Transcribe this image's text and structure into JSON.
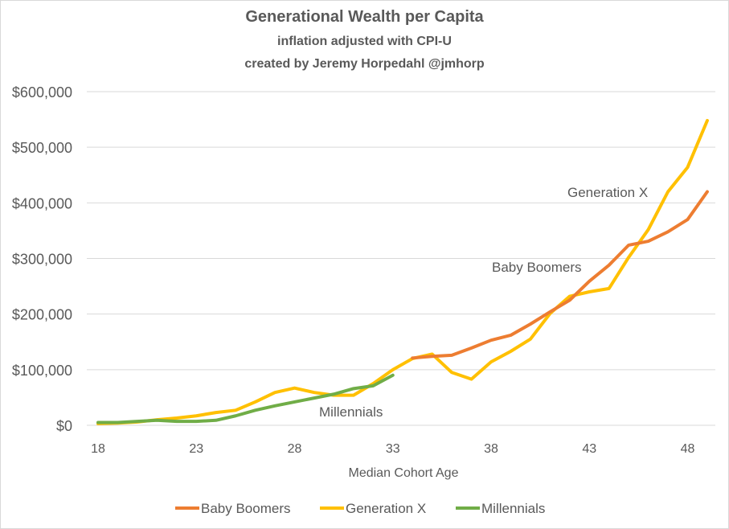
{
  "chart_data": {
    "type": "line",
    "title": "Generational Wealth per Capita",
    "subtitle": [
      "inflation adjusted  with CPI-U",
      "created by Jeremy Horpedahl  @jmhorp"
    ],
    "xlabel": "Median Cohort Age",
    "ylabel": "",
    "xlim": [
      17.5,
      49.5
    ],
    "ylim": [
      0,
      600000
    ],
    "xticks": [
      18,
      23,
      28,
      33,
      38,
      43,
      48
    ],
    "yticks": [
      0,
      100000,
      200000,
      300000,
      400000,
      500000,
      600000
    ],
    "ytick_labels": [
      "$0",
      "$100,000",
      "$200,000",
      "$300,000",
      "$400,000",
      "$500,000",
      "$600,000"
    ],
    "grid": "horizontal",
    "legend": "bottom",
    "series": [
      {
        "name": "Baby Boomers",
        "color": "#ED7D31",
        "label": "Baby Boomers",
        "x": [
          34,
          35,
          36,
          37,
          38,
          39,
          40,
          41,
          42,
          43,
          44,
          45,
          46,
          47,
          48,
          49
        ],
        "y": [
          121000,
          124000,
          126000,
          139000,
          153000,
          162000,
          182000,
          204000,
          225000,
          259000,
          288000,
          324000,
          331000,
          348000,
          370000,
          420000
        ]
      },
      {
        "name": "Generation X",
        "color": "#FFC000",
        "label": "Generation X",
        "x": [
          18,
          19,
          20,
          21,
          22,
          23,
          24,
          25,
          26,
          27,
          28,
          29,
          30,
          31,
          32,
          33,
          34,
          35,
          36,
          37,
          38,
          39,
          40,
          41,
          42,
          43,
          44,
          45,
          46,
          47,
          48,
          49
        ],
        "y": [
          3000,
          4000,
          6000,
          10000,
          13000,
          17000,
          23000,
          27000,
          42000,
          59000,
          67000,
          59000,
          54000,
          54000,
          75000,
          100000,
          120000,
          128000,
          95000,
          83000,
          114000,
          133000,
          155000,
          201000,
          232000,
          240000,
          246000,
          302000,
          352000,
          420000,
          464000,
          548000
        ]
      },
      {
        "name": "Millennials",
        "color": "#70AD47",
        "label": "Millennials",
        "x": [
          18,
          19,
          20,
          21,
          22,
          23,
          24,
          25,
          26,
          27,
          28,
          29,
          30,
          31,
          32,
          33
        ],
        "y": [
          5000,
          5000,
          7000,
          9000,
          7000,
          7000,
          9000,
          17000,
          27000,
          35000,
          42000,
          49000,
          56000,
          66000,
          71000,
          90000
        ]
      }
    ]
  }
}
